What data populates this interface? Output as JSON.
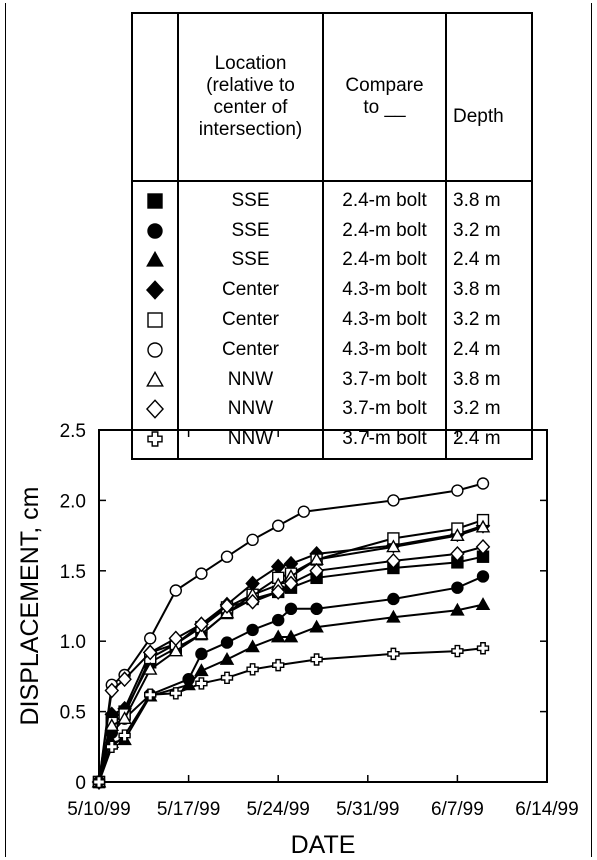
{
  "legend": {
    "headers": {
      "location": "Location\n(relative to\ncenter of\nintersection)",
      "compare": "Compare\nto __",
      "depth": "Depth"
    },
    "rows": [
      {
        "symbol": "filled-square",
        "location": "SSE",
        "compare": "2.4-m bolt",
        "depth": "3.8 m"
      },
      {
        "symbol": "filled-circle",
        "location": "SSE",
        "compare": "2.4-m bolt",
        "depth": "3.2 m"
      },
      {
        "symbol": "filled-triangle",
        "location": "SSE",
        "compare": "2.4-m bolt",
        "depth": "2.4 m"
      },
      {
        "symbol": "filled-diamond",
        "location": "Center",
        "compare": "4.3-m bolt",
        "depth": "3.8 m"
      },
      {
        "symbol": "open-square",
        "location": "Center",
        "compare": "4.3-m bolt",
        "depth": "3.2 m"
      },
      {
        "symbol": "open-circle",
        "location": "Center",
        "compare": "4.3-m bolt",
        "depth": "2.4 m"
      },
      {
        "symbol": "open-triangle",
        "location": "NNW",
        "compare": "3.7-m bolt",
        "depth": "3.8 m"
      },
      {
        "symbol": "open-diamond",
        "location": "NNW",
        "compare": "3.7-m bolt",
        "depth": "3.2 m"
      },
      {
        "symbol": "open-cross",
        "location": "NNW",
        "compare": "3.7-m bolt",
        "depth": "2.4 m"
      }
    ]
  },
  "chart_data": {
    "type": "line",
    "xlabel": "DATE",
    "ylabel": "DISPLACEMENT, cm",
    "xlim": [
      "5/10/99",
      "6/14/99"
    ],
    "ylim": [
      0,
      2.5
    ],
    "x_ticks": [
      "5/10/99",
      "5/17/99",
      "5/24/99",
      "5/31/99",
      "6/7/99",
      "6/14/99"
    ],
    "y_ticks": [
      "0",
      "0.5",
      "1.0",
      "1.5",
      "2.0",
      "2.5"
    ],
    "grid": false,
    "series": [
      {
        "symbol": "filled-square",
        "x": [
          "5/10/99",
          "5/11/99",
          "5/12/99",
          "5/14/99",
          "5/16/99",
          "5/18/99",
          "5/20/99",
          "5/22/99",
          "5/24/99",
          "5/25/99",
          "5/27/99",
          "6/2/99",
          "6/7/99",
          "6/9/99"
        ],
        "y": [
          0,
          0.45,
          0.5,
          0.85,
          0.95,
          1.05,
          1.2,
          1.3,
          1.35,
          1.38,
          1.45,
          1.52,
          1.56,
          1.6
        ]
      },
      {
        "symbol": "filled-circle",
        "x": [
          "5/10/99",
          "5/11/99",
          "5/12/99",
          "5/14/99",
          "5/17/99",
          "5/18/99",
          "5/20/99",
          "5/22/99",
          "5/24/99",
          "5/25/99",
          "5/27/99",
          "6/2/99",
          "6/7/99",
          "6/9/99"
        ],
        "y": [
          0,
          0.35,
          0.45,
          0.62,
          0.73,
          0.91,
          0.99,
          1.08,
          1.15,
          1.23,
          1.23,
          1.3,
          1.38,
          1.46
        ]
      },
      {
        "symbol": "filled-triangle",
        "x": [
          "5/10/99",
          "5/11/99",
          "5/12/99",
          "5/14/99",
          "5/17/99",
          "5/18/99",
          "5/20/99",
          "5/22/99",
          "5/24/99",
          "5/25/99",
          "5/27/99",
          "6/2/99",
          "6/7/99",
          "6/9/99"
        ],
        "y": [
          0,
          0.28,
          0.3,
          0.61,
          0.69,
          0.79,
          0.87,
          0.96,
          1.03,
          1.03,
          1.1,
          1.17,
          1.22,
          1.26
        ]
      },
      {
        "symbol": "filled-diamond",
        "x": [
          "5/10/99",
          "5/11/99",
          "5/12/99",
          "5/14/99",
          "5/16/99",
          "5/18/99",
          "5/20/99",
          "5/22/99",
          "5/24/99",
          "5/25/99",
          "5/27/99",
          "6/2/99",
          "6/7/99",
          "6/9/99"
        ],
        "y": [
          0,
          0.48,
          0.52,
          0.92,
          0.98,
          1.12,
          1.26,
          1.41,
          1.53,
          1.55,
          1.62,
          1.68,
          1.76,
          1.82
        ]
      },
      {
        "symbol": "open-square",
        "x": [
          "5/10/99",
          "5/11/99",
          "5/12/99",
          "5/14/99",
          "5/16/99",
          "5/18/99",
          "5/20/99",
          "5/22/99",
          "5/24/99",
          "5/25/99",
          "5/27/99",
          "6/2/99",
          "6/7/99",
          "6/9/99"
        ],
        "y": [
          0,
          0.42,
          0.48,
          0.88,
          0.98,
          1.1,
          1.24,
          1.33,
          1.45,
          1.48,
          1.58,
          1.73,
          1.8,
          1.86
        ]
      },
      {
        "symbol": "open-circle",
        "x": [
          "5/10/99",
          "5/11/99",
          "5/12/99",
          "5/14/99",
          "5/16/99",
          "5/18/99",
          "5/20/99",
          "5/22/99",
          "5/24/99",
          "5/26/99",
          "6/2/99",
          "6/7/99",
          "6/9/99"
        ],
        "y": [
          0,
          0.69,
          0.76,
          1.02,
          1.36,
          1.48,
          1.6,
          1.72,
          1.82,
          1.92,
          2.0,
          2.07,
          2.12
        ]
      },
      {
        "symbol": "open-triangle",
        "x": [
          "5/10/99",
          "5/11/99",
          "5/12/99",
          "5/14/99",
          "5/16/99",
          "5/18/99",
          "5/20/99",
          "5/22/99",
          "5/24/99",
          "5/25/99",
          "5/27/99",
          "6/2/99",
          "6/7/99",
          "6/9/99"
        ],
        "y": [
          0,
          0.4,
          0.45,
          0.8,
          0.93,
          1.05,
          1.2,
          1.33,
          1.4,
          1.46,
          1.58,
          1.67,
          1.75,
          1.81
        ]
      },
      {
        "symbol": "open-diamond",
        "x": [
          "5/10/99",
          "5/11/99",
          "5/12/99",
          "5/14/99",
          "5/16/99",
          "5/18/99",
          "5/20/99",
          "5/22/99",
          "5/24/99",
          "5/25/99",
          "5/27/99",
          "6/2/99",
          "6/7/99",
          "6/9/99"
        ],
        "y": [
          0,
          0.65,
          0.73,
          0.92,
          1.02,
          1.12,
          1.25,
          1.28,
          1.35,
          1.41,
          1.5,
          1.57,
          1.62,
          1.67
        ]
      },
      {
        "symbol": "open-cross",
        "x": [
          "5/10/99",
          "5/11/99",
          "5/12/99",
          "5/14/99",
          "5/16/99",
          "5/18/99",
          "5/20/99",
          "5/22/99",
          "5/24/99",
          "5/27/99",
          "6/2/99",
          "6/7/99",
          "6/9/99"
        ],
        "y": [
          0,
          0.25,
          0.33,
          0.62,
          0.63,
          0.7,
          0.74,
          0.8,
          0.83,
          0.87,
          0.91,
          0.93,
          0.95
        ]
      }
    ]
  }
}
